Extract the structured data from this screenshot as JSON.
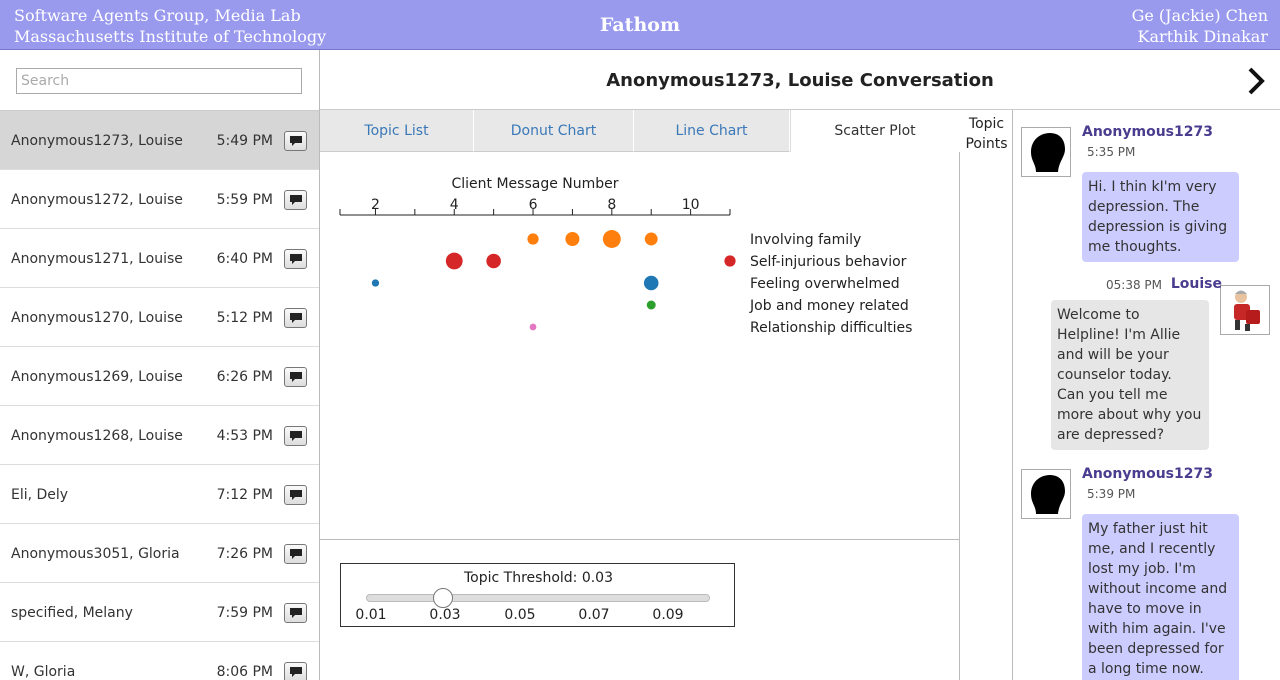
{
  "header": {
    "org_line1": "Software Agents Group, Media Lab",
    "org_line2": "Massachusetts Institute of Technology",
    "title": "Fathom",
    "author1": "Ge (Jackie) Chen",
    "author2": "Karthik Dinakar",
    "color": "#9999ee"
  },
  "search": {
    "placeholder": "Search",
    "value": ""
  },
  "conversations": [
    {
      "name": "Anonymous1273, Louise",
      "time": "5:49 PM",
      "active": true
    },
    {
      "name": "Anonymous1272, Louise",
      "time": "5:59 PM"
    },
    {
      "name": "Anonymous1271, Louise",
      "time": "6:40 PM"
    },
    {
      "name": "Anonymous1270, Louise",
      "time": "5:12 PM"
    },
    {
      "name": "Anonymous1269, Louise",
      "time": "6:26 PM"
    },
    {
      "name": "Anonymous1268, Louise",
      "time": "4:53 PM"
    },
    {
      "name": "Eli, Dely",
      "time": "7:12 PM"
    },
    {
      "name": "Anonymous3051, Gloria",
      "time": "7:26 PM"
    },
    {
      "name": "specified, Melany",
      "time": "7:59 PM"
    },
    {
      "name": "W, Gloria",
      "time": "8:06 PM"
    }
  ],
  "conversation_title": "Anonymous1273, Louise Conversation",
  "tabs": [
    {
      "label": "Topic List"
    },
    {
      "label": "Donut Chart"
    },
    {
      "label": "Line Chart"
    },
    {
      "label": "Scatter Plot",
      "active": true
    }
  ],
  "chart_data": {
    "type": "scatter",
    "xlabel": "Client Message Number",
    "x_ticks": [
      2,
      4,
      6,
      8,
      10
    ],
    "xlim": [
      1.1,
      11
    ],
    "categories": [
      "Involving family",
      "Self-injurious behavior",
      "Feeling overwhelmed",
      "Job and money related",
      "Relationship difficulties"
    ],
    "series": [
      {
        "name": "Involving family",
        "color": "#ff7f0e",
        "points": [
          {
            "x": 6,
            "size": 2
          },
          {
            "x": 7,
            "size": 2.5
          },
          {
            "x": 8,
            "size": 3.2
          },
          {
            "x": 9,
            "size": 2.3
          }
        ]
      },
      {
        "name": "Self-injurious behavior",
        "color": "#d62728",
        "points": [
          {
            "x": 4,
            "size": 3
          },
          {
            "x": 5,
            "size": 2.6
          },
          {
            "x": 11,
            "size": 2
          }
        ]
      },
      {
        "name": "Feeling overwhelmed",
        "color": "#1f77b4",
        "points": [
          {
            "x": 2,
            "size": 1.3
          },
          {
            "x": 9,
            "size": 2.6
          }
        ]
      },
      {
        "name": "Job and money related",
        "color": "#2ca02c",
        "points": [
          {
            "x": 9,
            "size": 1.6
          }
        ]
      },
      {
        "name": "Relationship difficulties",
        "color": "#e377c2",
        "points": [
          {
            "x": 6,
            "size": 1.2
          }
        ]
      }
    ]
  },
  "threshold": {
    "label": "Topic Threshold: 0.03",
    "value": 0.03,
    "ticks": [
      "0.01",
      "0.03",
      "0.05",
      "0.07",
      "0.09"
    ]
  },
  "topic_points": {
    "line1": "Topic",
    "line2": "Points"
  },
  "messages": [
    {
      "sender": "Anonymous1273",
      "time": "5:35 PM",
      "role": "client",
      "text": "Hi. I thin kI'm very depression. The depression is giving me thoughts."
    },
    {
      "sender": "Louise",
      "time": "05:38 PM",
      "role": "counselor",
      "text": "Welcome to Helpline! I'm Allie and will be your counselor today. Can you tell me more about why you are depressed?"
    },
    {
      "sender": "Anonymous1273",
      "time": "5:39 PM",
      "role": "client",
      "text": "My father just hit me, and I recently lost my job. I'm without income and have to move in with him again. I've been depressed for a long time now. Help!"
    }
  ]
}
